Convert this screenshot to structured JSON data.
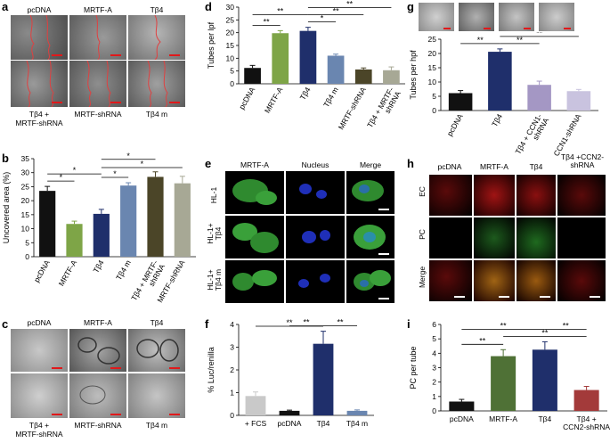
{
  "panels": {
    "a": {
      "label": "a",
      "top_labels": [
        "pcDNA",
        "MRTF-A",
        "Tβ4"
      ],
      "bottom_labels": [
        "Tβ4 +\nMRTF-shRNA",
        "MRTF-shRNA",
        "Tβ4 m"
      ]
    },
    "b": {
      "label": "b"
    },
    "c": {
      "label": "c",
      "top_labels": [
        "pcDNA",
        "MRTF-A",
        "Tβ4"
      ],
      "bottom_labels": [
        "Tβ4 +\nMRTF-shRNA",
        "MRTF-shRNA",
        "Tβ4 m"
      ]
    },
    "d": {
      "label": "d"
    },
    "e": {
      "label": "e",
      "col_labels": [
        "MRTF-A",
        "Nucleus",
        "Merge"
      ],
      "row_labels": [
        "HL-1",
        "HL-1+\nTβ4",
        "HL-1+\nTβ4 m"
      ]
    },
    "f": {
      "label": "f"
    },
    "g": {
      "label": "g"
    },
    "h": {
      "label": "h",
      "col_labels": [
        "pcDNA",
        "MRTF-A",
        "Tβ4",
        "Tβ4 +CCN2-\nshRNA"
      ],
      "row_labels": [
        "EC",
        "PC",
        "Merge"
      ]
    },
    "i": {
      "label": "i"
    }
  },
  "colors": {
    "black": "#111111",
    "green": "#7ea547",
    "navy": "#1f2f6b",
    "steel": "#6a86b0",
    "olive": "#4b4528",
    "gray": "#a7a895",
    "light_gray": "#c9c9c9",
    "lilac": "#a497c4",
    "lavender": "#c9c3df",
    "dark_green": "#4f7136",
    "dark_red": "#a33a3a"
  },
  "chart_data": [
    {
      "id": "b",
      "type": "bar",
      "categories": [
        "pcDNA",
        "MRTF-A",
        "Tβ4",
        "Tβ4 m",
        "Tβ4 + MRTF-\nshRNA",
        "MRTF-shRNA"
      ],
      "values": [
        23.5,
        11.7,
        15.3,
        25.4,
        28.5,
        26.2
      ],
      "errors": [
        1.6,
        1.0,
        1.6,
        1.0,
        1.8,
        2.5
      ],
      "colors": [
        "#111111",
        "#7ea547",
        "#1f2f6b",
        "#6a86b0",
        "#4b4528",
        "#a7a895"
      ],
      "ylabel": "Uncovered area (%)",
      "ylim": [
        0,
        35
      ],
      "yticks": [
        0,
        5,
        10,
        15,
        20,
        25,
        30,
        35
      ],
      "sig": [
        {
          "from": 0,
          "to": 1,
          "label": "*",
          "level": 0
        },
        {
          "from": 0,
          "to": 2,
          "label": "*",
          "level": 1
        },
        {
          "from": 2,
          "to": 3,
          "label": "*",
          "level": 0
        },
        {
          "from": 2,
          "to": 4,
          "label": "*",
          "level": 1
        },
        {
          "from": 2,
          "to": 5,
          "label": "*",
          "level": 2
        }
      ]
    },
    {
      "id": "d",
      "type": "bar",
      "categories": [
        "pcDNA",
        "MRTF-A",
        "Tβ4",
        "Tβ4 m",
        "MRTF-shRNA",
        "Tβ4 + MRTF-\nshRNA"
      ],
      "values": [
        6.2,
        19.8,
        20.7,
        11.0,
        5.6,
        5.3
      ],
      "errors": [
        1.0,
        1.0,
        1.4,
        0.6,
        0.6,
        1.3
      ],
      "colors": [
        "#111111",
        "#7ea547",
        "#1f2f6b",
        "#6a86b0",
        "#4b4528",
        "#a7a895"
      ],
      "ylabel": "Tubes per lpf",
      "ylim": [
        0,
        30
      ],
      "yticks": [
        0,
        5,
        10,
        15,
        20,
        25,
        30
      ],
      "sig": [
        {
          "from": 0,
          "to": 1,
          "label": "**",
          "level": 0
        },
        {
          "from": 0,
          "to": 2,
          "label": "**",
          "level": 1
        },
        {
          "from": 2,
          "to": 3,
          "label": "*",
          "level": 0
        },
        {
          "from": 2,
          "to": 4,
          "label": "**",
          "level": 1
        },
        {
          "from": 2,
          "to": 5,
          "label": "**",
          "level": 2
        }
      ]
    },
    {
      "id": "f",
      "type": "bar",
      "categories": [
        "+ FCS",
        "pcDNA",
        "Tβ4",
        "Tβ4 m"
      ],
      "values": [
        0.85,
        0.2,
        3.15,
        0.2
      ],
      "errors": [
        0.18,
        0.03,
        0.55,
        0.04
      ],
      "colors": [
        "#c9c9c9",
        "#111111",
        "#1f2f6b",
        "#6a86b0"
      ],
      "ylabel": "% Luc/renilla",
      "ylim": [
        0,
        4
      ],
      "yticks": [
        0,
        1,
        2,
        3,
        4
      ],
      "sig": [
        {
          "from": 1,
          "to": 2,
          "label": "**",
          "level": 0
        },
        {
          "from": 2,
          "to": 3,
          "label": "**",
          "level": 0
        },
        {
          "from": 0,
          "to": 2,
          "label": "**",
          "level": 1
        }
      ]
    },
    {
      "id": "g",
      "type": "bar",
      "categories": [
        "pcDNA",
        "Tβ4",
        "Tβ4 + CCN1-\nshRNA",
        "CCN1-shRNA"
      ],
      "values": [
        6.1,
        20.6,
        9.0,
        6.8
      ],
      "errors": [
        0.9,
        1.0,
        1.3,
        0.6
      ],
      "colors": [
        "#111111",
        "#1f2f6b",
        "#a497c4",
        "#c9c3df"
      ],
      "ylabel": "Tubes per hpf",
      "ylim": [
        0,
        25
      ],
      "yticks": [
        0,
        5,
        10,
        15,
        20,
        25
      ],
      "sig": [
        {
          "from": 0,
          "to": 1,
          "label": "**",
          "level": 0
        },
        {
          "from": 1,
          "to": 2,
          "label": "**",
          "level": 0
        },
        {
          "from": 1,
          "to": 3,
          "label": "**",
          "level": 1
        }
      ]
    },
    {
      "id": "i",
      "type": "bar",
      "categories": [
        "pcDNA",
        "MRTF-A",
        "Tβ4",
        "Tβ4 +\nCCN2-shRNA"
      ],
      "values": [
        0.65,
        3.8,
        4.25,
        1.45
      ],
      "errors": [
        0.15,
        0.45,
        0.55,
        0.25
      ],
      "colors": [
        "#111111",
        "#4f7136",
        "#1f2f6b",
        "#a33a3a"
      ],
      "ylabel": "PC per tube",
      "ylim": [
        0,
        6
      ],
      "yticks": [
        0,
        1,
        2,
        3,
        4,
        5,
        6
      ],
      "sig": [
        {
          "from": 0,
          "to": 1,
          "label": "**",
          "level": 0
        },
        {
          "from": 0,
          "to": 2,
          "label": "**",
          "level": 1
        },
        {
          "from": 1,
          "to": 3,
          "label": "**",
          "level": 0
        },
        {
          "from": 2,
          "to": 3,
          "label": "**",
          "level": 1
        }
      ]
    }
  ]
}
